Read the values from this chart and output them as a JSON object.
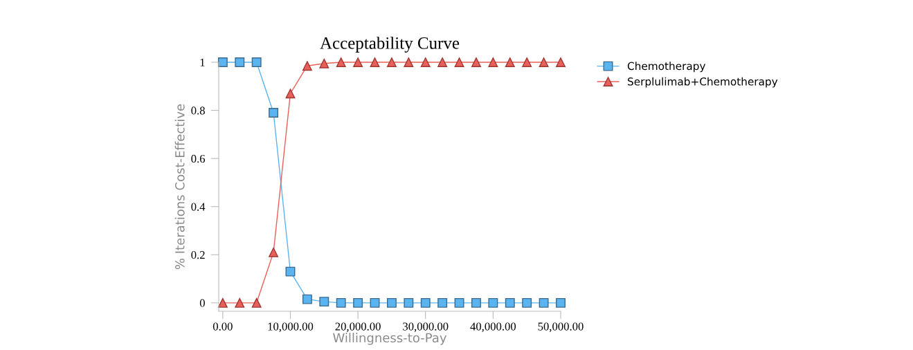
{
  "chart_data": {
    "type": "line",
    "title": "Acceptability Curve",
    "xlabel": "Willingness-to-Pay",
    "ylabel": "% Iterations Cost-Effective",
    "x": [
      0,
      2500,
      5000,
      7500,
      10000,
      12500,
      15000,
      17500,
      20000,
      22500,
      25000,
      27500,
      30000,
      32500,
      35000,
      37500,
      40000,
      42500,
      45000,
      47500,
      50000
    ],
    "series": [
      {
        "name": "Chemotherapy",
        "color": "#5ab4f0",
        "marker": "square",
        "values": [
          1,
          1,
          1,
          0.79,
          0.13,
          0.015,
          0.005,
          0,
          0,
          0,
          0,
          0,
          0,
          0,
          0,
          0,
          0,
          0,
          0,
          0,
          0
        ]
      },
      {
        "name": "Serplulimab+Chemotherapy",
        "color": "#e8605a",
        "marker": "triangle",
        "values": [
          0,
          0,
          0,
          0.21,
          0.87,
          0.985,
          0.995,
          1,
          1,
          1,
          1,
          1,
          1,
          1,
          1,
          1,
          1,
          1,
          1,
          1,
          1
        ]
      }
    ],
    "xlim": [
      -600,
      50000
    ],
    "ylim": [
      -0.035,
      1
    ],
    "xticks": [
      {
        "value": 0,
        "label": "0.00"
      },
      {
        "value": 10000,
        "label": "10,000.00"
      },
      {
        "value": 20000,
        "label": "20,000.00"
      },
      {
        "value": 30000,
        "label": "30,000.00"
      },
      {
        "value": 40000,
        "label": "40,000.00"
      },
      {
        "value": 50000,
        "label": "50,000.00"
      }
    ],
    "yticks": [
      0,
      0.2,
      0.4,
      0.6,
      0.8,
      1
    ],
    "grid": false,
    "legend": "top right",
    "line_style": "solid"
  }
}
